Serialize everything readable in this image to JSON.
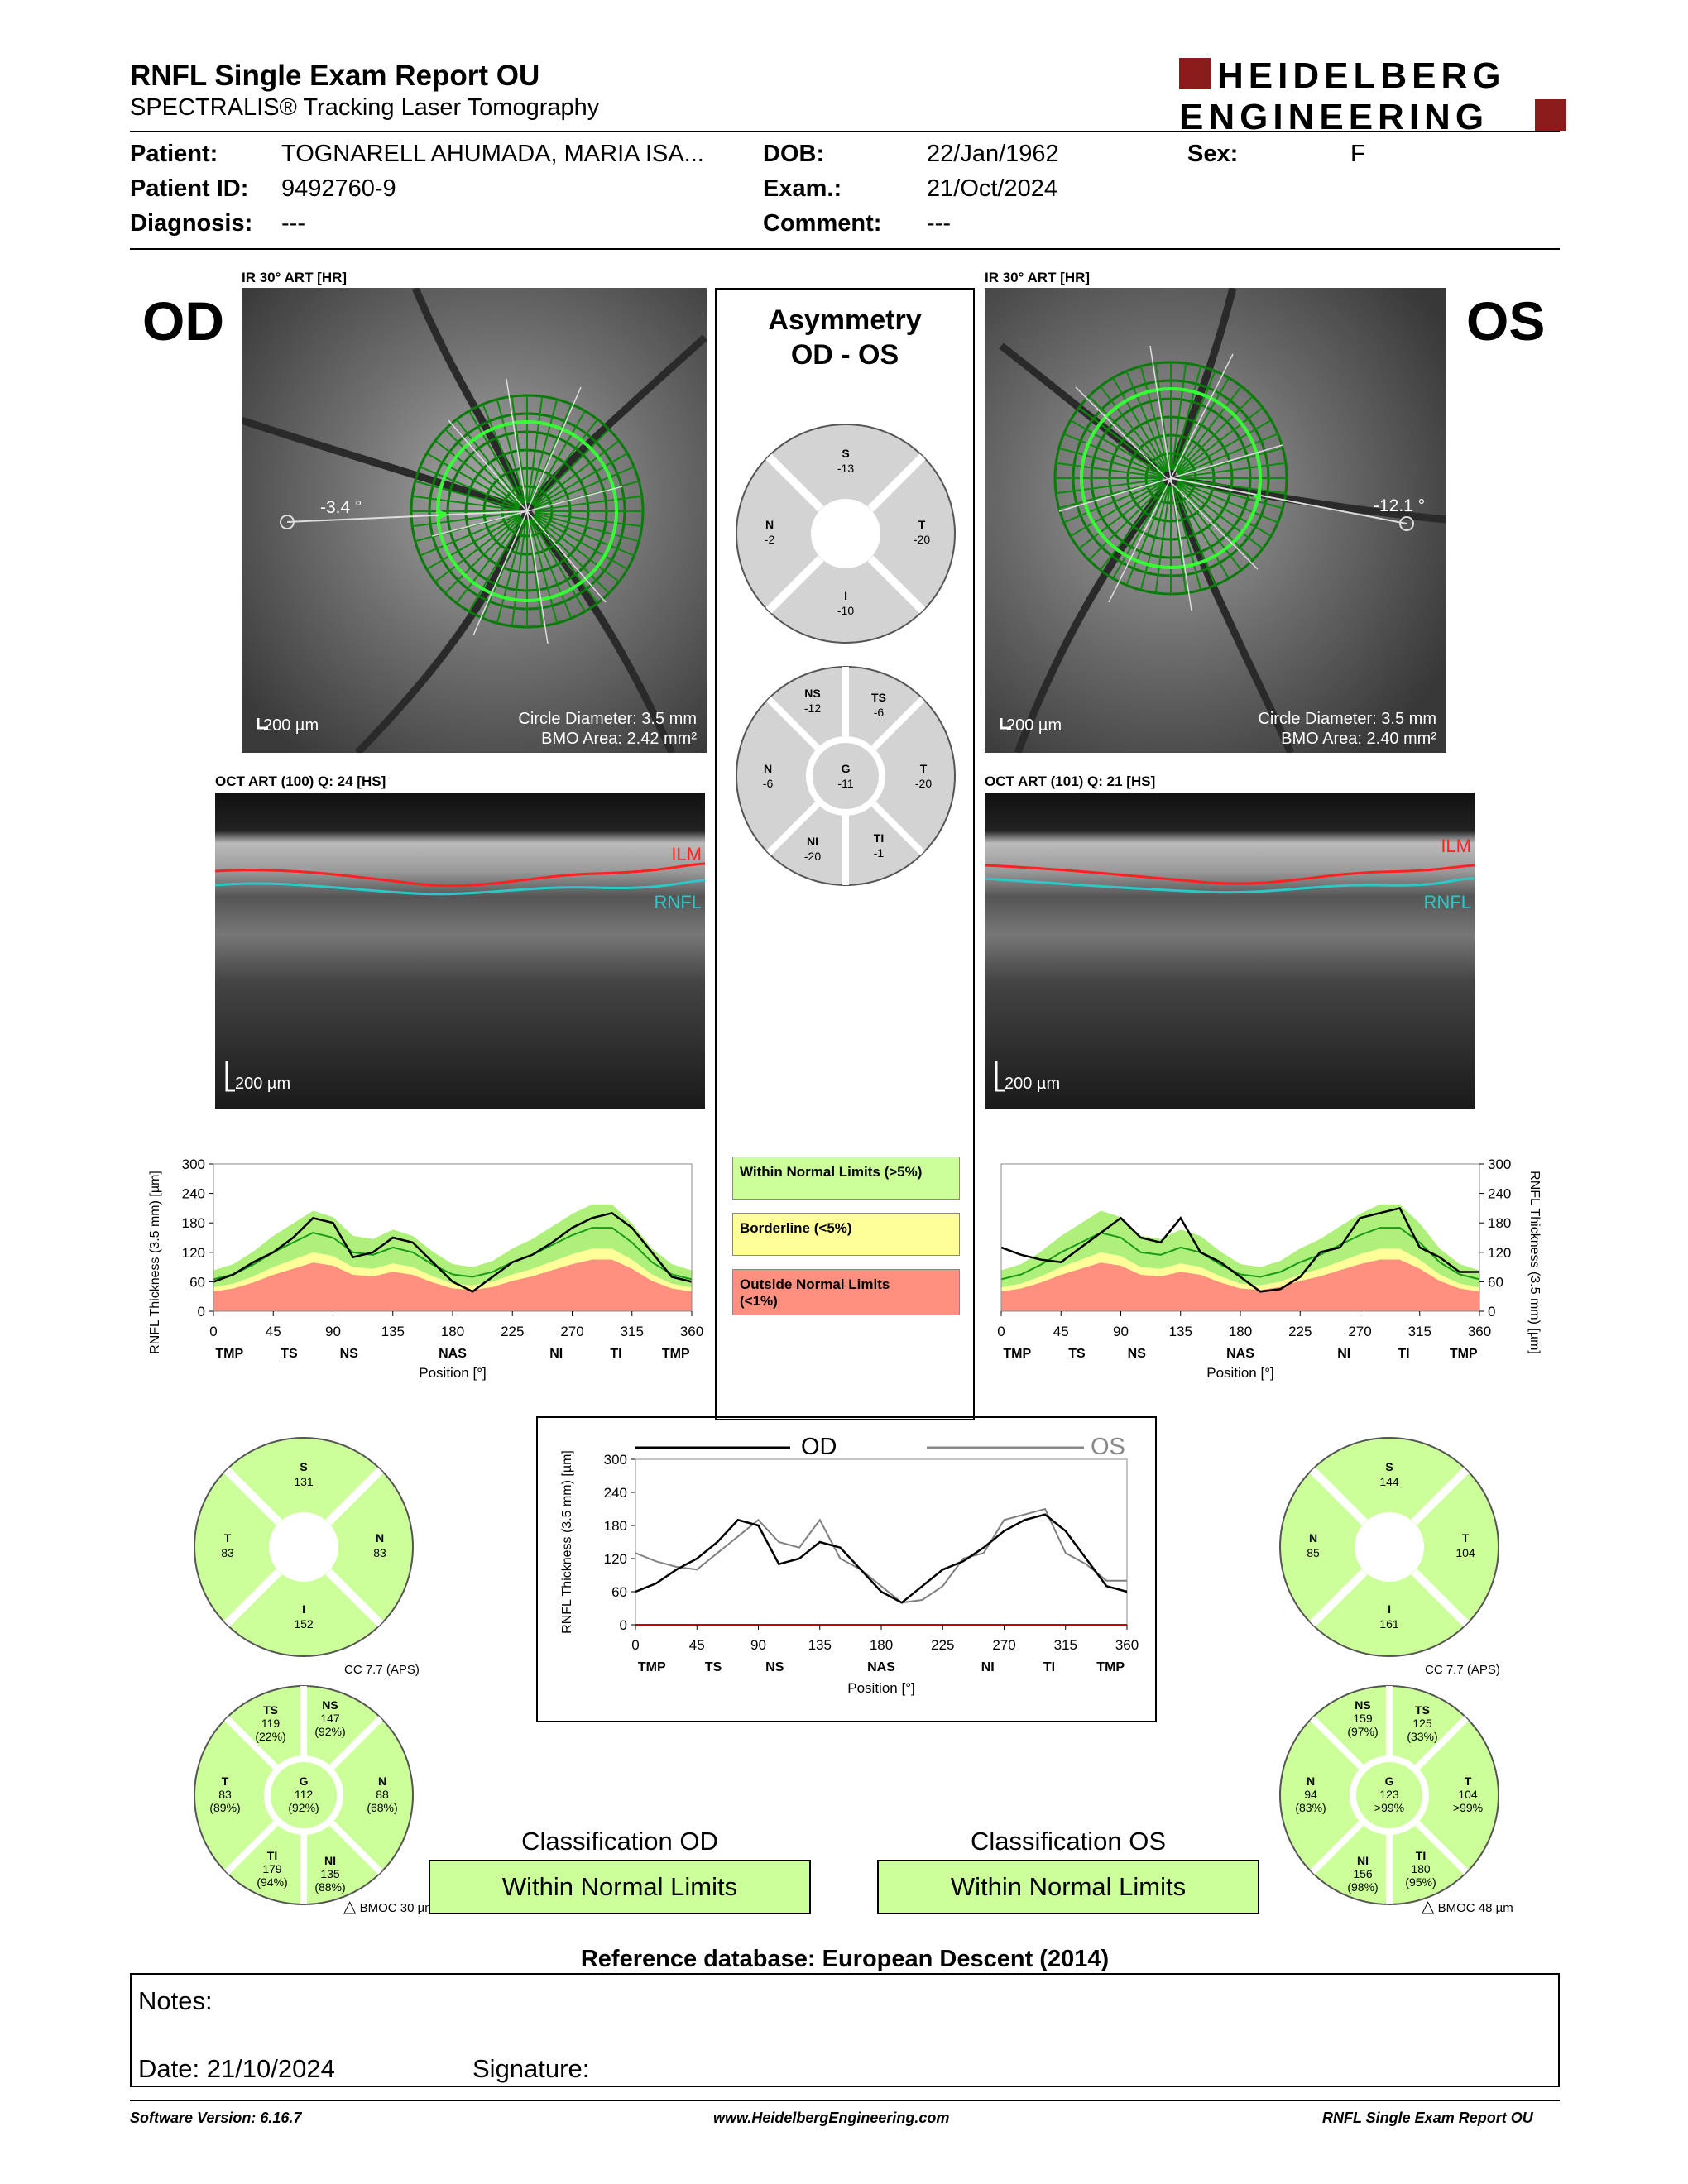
{
  "header": {
    "title": "RNFL Single Exam Report OU",
    "subtitle": "SPECTRALIS® Tracking Laser Tomography",
    "logo_line1": "HEIDELBERG",
    "logo_line2": "ENGINEERING"
  },
  "patient": {
    "patient_label": "Patient:",
    "patient_value": "TOGNARELL AHUMADA, MARIA ISA...",
    "dob_label": "DOB:",
    "dob_value": "22/Jan/1962",
    "sex_label": "Sex:",
    "sex_value": "F",
    "id_label": "Patient ID:",
    "id_value": "9492760-9",
    "exam_label": "Exam.:",
    "exam_value": "21/Oct/2024",
    "diag_label": "Diagnosis:",
    "diag_value": "---",
    "comment_label": "Comment:",
    "comment_value": "---"
  },
  "od": {
    "eye": "OD",
    "ir_caption": "IR 30° ART [HR]",
    "angle": "-3.4 °",
    "scale": "200 µm",
    "circle_diameter": "Circle Diameter: 3.5 mm",
    "bmo_area": "BMO Area: 2.42 mm²",
    "oct_caption": "OCT ART (100) Q: 24 [HS]",
    "oct_scale": "200 µm",
    "ilm": "ILM",
    "rnfl": "RNFL",
    "sectors4": {
      "s": "S",
      "s_val": "131",
      "t": "T",
      "t_val": "83",
      "n": "N",
      "n_val": "83",
      "i": "I",
      "i_val": "152"
    },
    "cc": "CC 7.7 (APS)",
    "sectors6": {
      "ts": "TS",
      "ts_val": "119",
      "ts_pct": "(22%)",
      "ns": "NS",
      "ns_val": "147",
      "ns_pct": "(92%)",
      "t": "T",
      "t_val": "83",
      "t_pct": "(89%)",
      "g": "G",
      "g_val": "112",
      "g_pct": "(92%)",
      "n": "N",
      "n_val": "88",
      "n_pct": "(68%)",
      "ti": "TI",
      "ti_val": "179",
      "ti_pct": "(94%)",
      "ni": "NI",
      "ni_val": "135",
      "ni_pct": "(88%)"
    },
    "bmoc": "BMOC 30 µm",
    "classification_title": "Classification OD",
    "classification": "Within Normal Limits"
  },
  "os": {
    "eye": "OS",
    "ir_caption": "IR 30° ART [HR]",
    "angle": "-12.1 °",
    "scale": "200 µm",
    "circle_diameter": "Circle Diameter: 3.5 mm",
    "bmo_area": "BMO Area: 2.40 mm²",
    "oct_caption": "OCT ART (101) Q: 21 [HS]",
    "oct_scale": "200 µm",
    "ilm": "ILM",
    "rnfl": "RNFL",
    "sectors4": {
      "s": "S",
      "s_val": "144",
      "n": "N",
      "n_val": "85",
      "t": "T",
      "t_val": "104",
      "i": "I",
      "i_val": "161"
    },
    "cc": "CC 7.7 (APS)",
    "sectors6": {
      "ns": "NS",
      "ns_val": "159",
      "ns_pct": "(97%)",
      "ts": "TS",
      "ts_val": "125",
      "ts_pct": "(33%)",
      "n": "N",
      "n_val": "94",
      "n_pct": "(83%)",
      "g": "G",
      "g_val": "123",
      "g_pct": ">99%",
      "t": "T",
      "t_val": "104",
      "t_pct": ">99%",
      "ni": "NI",
      "ni_val": "156",
      "ni_pct": "(98%)",
      "ti": "TI",
      "ti_val": "180",
      "ti_pct": "(95%)"
    },
    "bmoc": "BMOC 48 µm",
    "classification_title": "Classification OS",
    "classification": "Within Normal Limits"
  },
  "asymmetry": {
    "title1": "Asymmetry",
    "title2": "OD - OS",
    "sectors4": {
      "s": "S",
      "s_val": "-13",
      "n": "N",
      "n_val": "-2",
      "t": "T",
      "t_val": "-20",
      "i": "I",
      "i_val": "-10"
    },
    "sectors6": {
      "ns": "NS",
      "ns_val": "-12",
      "ts": "TS",
      "ts_val": "-6",
      "n": "N",
      "n_val": "-6",
      "g": "G",
      "g_val": "-11",
      "t": "T",
      "t_val": "-20",
      "ni": "NI",
      "ni_val": "-20",
      "ti": "TI",
      "ti_val": "-1"
    },
    "legend": {
      "normal": "Within Normal Limits (>5%)",
      "borderline": "Borderline (<5%)",
      "outside_line1": "Outside Normal Limits",
      "outside_line2": "(<1%)"
    }
  },
  "colors": {
    "normal": "#ccff99",
    "normal_band": "#aef07a",
    "borderline": "#ffff99",
    "outside": "#ff9080",
    "gray_sector": "#d3d3d3",
    "od_line": "#000000",
    "os_line": "#808080"
  },
  "chart_data": [
    {
      "type": "line",
      "name": "od_thickness",
      "ylabel": "RNFL Thickness (3.5 mm) [µm]",
      "xlabel": "Position [°]",
      "xlim": [
        0,
        360
      ],
      "ylim": [
        0,
        300
      ],
      "xticks": [
        0,
        45,
        90,
        135,
        180,
        225,
        270,
        315,
        360
      ],
      "yticks": [
        0,
        60,
        120,
        180,
        240,
        300
      ],
      "sector_labels": [
        "TMP",
        "TS",
        "NS",
        "NAS",
        "NI",
        "TI",
        "TMP"
      ],
      "x": [
        0,
        15,
        30,
        45,
        60,
        75,
        90,
        105,
        120,
        135,
        150,
        165,
        180,
        195,
        210,
        225,
        240,
        255,
        270,
        285,
        300,
        315,
        330,
        345,
        360
      ],
      "measured": [
        60,
        75,
        100,
        120,
        150,
        190,
        180,
        110,
        120,
        150,
        140,
        100,
        60,
        40,
        70,
        100,
        115,
        140,
        170,
        190,
        200,
        170,
        120,
        70,
        60
      ],
      "normal_median": [
        65,
        75,
        95,
        120,
        140,
        160,
        150,
        120,
        115,
        130,
        120,
        95,
        75,
        70,
        80,
        100,
        115,
        135,
        155,
        170,
        170,
        140,
        100,
        75,
        65
      ]
    },
    {
      "type": "line",
      "name": "os_thickness",
      "ylabel": "RNFL Thickness (3.5 mm) [µm]",
      "xlabel": "Position [°]",
      "xlim": [
        0,
        360
      ],
      "ylim": [
        0,
        300
      ],
      "xticks": [
        0,
        45,
        90,
        135,
        180,
        225,
        270,
        315,
        360
      ],
      "yticks": [
        0,
        60,
        120,
        180,
        240,
        300
      ],
      "sector_labels": [
        "TMP",
        "TS",
        "NS",
        "NAS",
        "NI",
        "TI",
        "TMP"
      ],
      "x": [
        0,
        15,
        30,
        45,
        60,
        75,
        90,
        105,
        120,
        135,
        150,
        165,
        180,
        195,
        210,
        225,
        240,
        255,
        270,
        285,
        300,
        315,
        330,
        345,
        360
      ],
      "measured": [
        130,
        115,
        105,
        100,
        130,
        160,
        190,
        150,
        140,
        190,
        120,
        100,
        70,
        40,
        45,
        70,
        120,
        130,
        190,
        200,
        210,
        130,
        110,
        80,
        80
      ],
      "normal_median": [
        65,
        75,
        95,
        120,
        140,
        160,
        150,
        120,
        115,
        130,
        120,
        95,
        75,
        70,
        80,
        100,
        115,
        135,
        155,
        170,
        170,
        140,
        100,
        75,
        65
      ]
    },
    {
      "type": "line",
      "name": "od_os_overlay",
      "ylabel": "RNFL Thickness (3.5 mm) [µm]",
      "xlabel": "Position [°]",
      "xlim": [
        0,
        360
      ],
      "ylim": [
        0,
        300
      ],
      "xticks": [
        0,
        45,
        90,
        135,
        180,
        225,
        270,
        315,
        360
      ],
      "yticks": [
        0,
        60,
        120,
        180,
        240,
        300
      ],
      "sector_labels": [
        "TMP",
        "TS",
        "NS",
        "NAS",
        "NI",
        "TI",
        "TMP"
      ],
      "legend": [
        "OD",
        "OS"
      ],
      "x": [
        0,
        15,
        30,
        45,
        60,
        75,
        90,
        105,
        120,
        135,
        150,
        165,
        180,
        195,
        210,
        225,
        240,
        255,
        270,
        285,
        300,
        315,
        330,
        345,
        360
      ],
      "od": [
        60,
        75,
        100,
        120,
        150,
        190,
        180,
        110,
        120,
        150,
        140,
        100,
        60,
        40,
        70,
        100,
        115,
        140,
        170,
        190,
        200,
        170,
        120,
        70,
        60
      ],
      "os": [
        130,
        115,
        105,
        100,
        130,
        160,
        190,
        150,
        140,
        190,
        120,
        100,
        70,
        40,
        45,
        70,
        120,
        130,
        190,
        200,
        210,
        130,
        110,
        80,
        80
      ]
    }
  ],
  "reference": "Reference database: European Descent (2014)",
  "notes": {
    "notes_label": "Notes:",
    "date_label": "Date: 21/10/2024",
    "signature_label": "Signature:"
  },
  "footer": {
    "software": "Software Version: 6.16.7",
    "website": "www.HeidelbergEngineering.com",
    "report": "RNFL Single Exam Report OU"
  }
}
